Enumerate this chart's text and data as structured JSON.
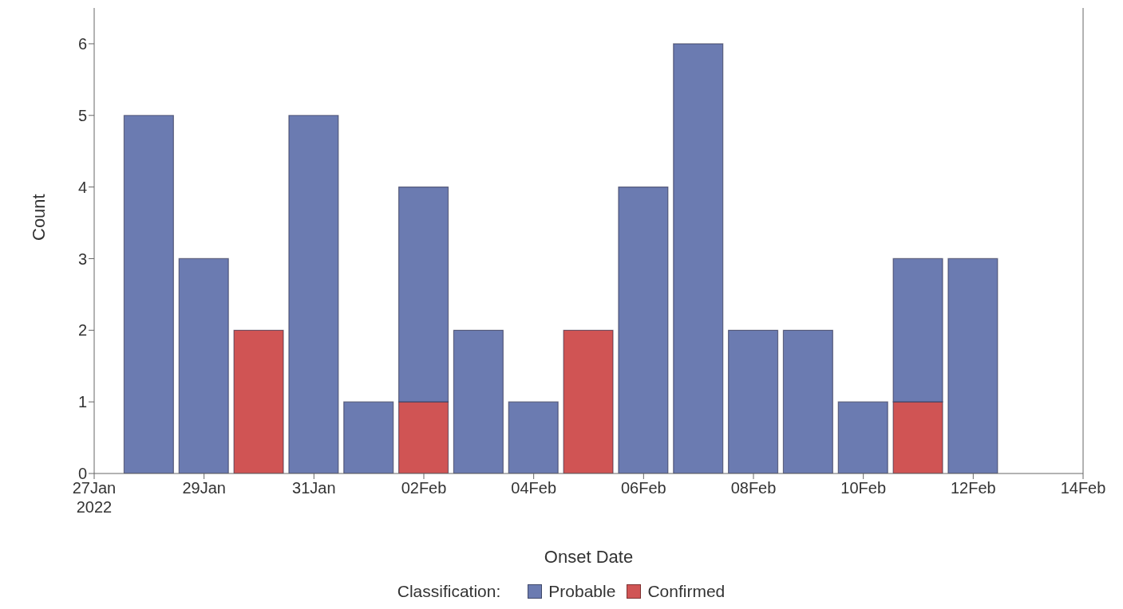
{
  "chart_data": {
    "type": "bar",
    "stacked": true,
    "xlabel": "Onset Date",
    "ylabel": "Count",
    "legend_title": "Classification:",
    "legend": "bottom",
    "grid": false,
    "x": [
      "2022-01-28",
      "2022-01-29",
      "2022-01-30",
      "2022-01-31",
      "2022-02-01",
      "2022-02-02",
      "2022-02-03",
      "2022-02-04",
      "2022-02-05",
      "2022-02-06",
      "2022-02-07",
      "2022-02-08",
      "2022-02-09",
      "2022-02-10",
      "2022-02-11",
      "2022-02-12"
    ],
    "series": [
      {
        "name": "Confirmed",
        "color": "#d05454",
        "values": [
          null,
          null,
          2,
          null,
          null,
          1,
          null,
          null,
          2,
          null,
          null,
          null,
          null,
          null,
          1,
          null
        ]
      },
      {
        "name": "Probable",
        "color": "#6b7bb1",
        "values": [
          5,
          3,
          null,
          5,
          1,
          3,
          2,
          1,
          null,
          4,
          6,
          2,
          2,
          1,
          2,
          3
        ]
      }
    ],
    "xlim": [
      "2022-01-27",
      "2022-02-14"
    ],
    "xticks": [
      {
        "value": "2022-01-27",
        "label": "27Jan\n2022"
      },
      {
        "value": "2022-01-29",
        "label": "29Jan"
      },
      {
        "value": "2022-01-31",
        "label": "31Jan"
      },
      {
        "value": "2022-02-02",
        "label": "02Feb"
      },
      {
        "value": "2022-02-04",
        "label": "04Feb"
      },
      {
        "value": "2022-02-06",
        "label": "06Feb"
      },
      {
        "value": "2022-02-08",
        "label": "08Feb"
      },
      {
        "value": "2022-02-10",
        "label": "10Feb"
      },
      {
        "value": "2022-02-12",
        "label": "12Feb"
      },
      {
        "value": "2022-02-14",
        "label": "14Feb"
      }
    ],
    "ylim": [
      0,
      6.5
    ],
    "yticks": [
      0,
      1,
      2,
      3,
      4,
      5,
      6
    ]
  }
}
